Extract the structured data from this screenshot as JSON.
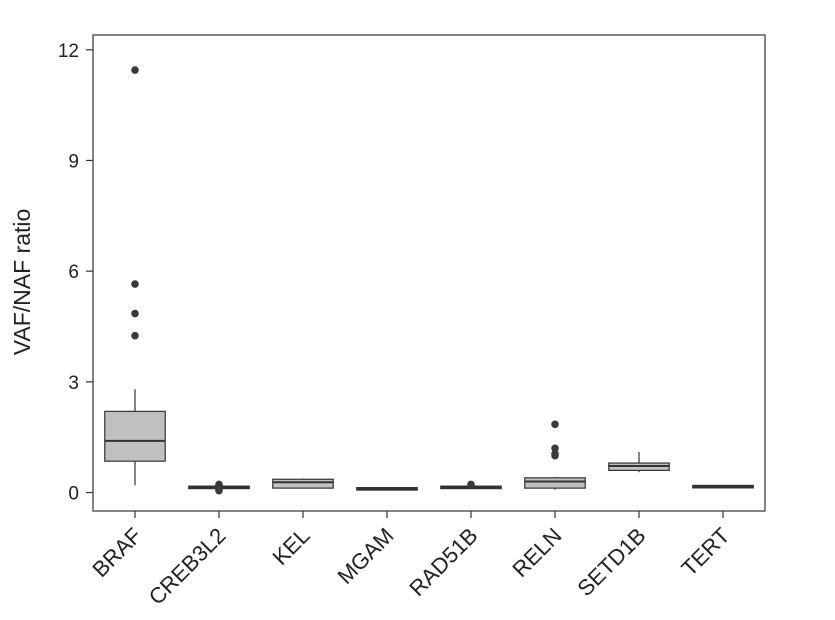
{
  "chart_data": {
    "type": "box",
    "title": "",
    "xlabel": "",
    "ylabel": "VAF/NAF ratio",
    "ylim": [
      -0.5,
      12.4
    ],
    "yticks": [
      0,
      3,
      6,
      9,
      12
    ],
    "ytick_labels": [
      "0",
      "3",
      "6",
      "9",
      "12"
    ],
    "grid": false,
    "box_color": "#c0c0c0",
    "line_color": "#333333",
    "categories": [
      "BRAF",
      "CREB3L2",
      "KEL",
      "MGAM",
      "RAD51B",
      "RELN",
      "SETD1B",
      "TERT"
    ],
    "boxes": [
      {
        "category": "BRAF",
        "whisker_low": 0.2,
        "q1": 0.85,
        "median": 1.4,
        "q3": 2.2,
        "whisker_high": 2.8,
        "outliers": [
          4.25,
          4.85,
          5.65,
          11.45
        ]
      },
      {
        "category": "CREB3L2",
        "whisker_low": 0.12,
        "q1": 0.12,
        "median": 0.14,
        "q3": 0.16,
        "whisker_high": 0.16,
        "outliers": [
          0.05,
          0.08,
          0.2,
          0.22
        ]
      },
      {
        "category": "KEL",
        "whisker_low": 0.12,
        "q1": 0.12,
        "median": 0.28,
        "q3": 0.36,
        "whisker_high": 0.38,
        "outliers": []
      },
      {
        "category": "MGAM",
        "whisker_low": 0.08,
        "q1": 0.08,
        "median": 0.1,
        "q3": 0.12,
        "whisker_high": 0.12,
        "outliers": []
      },
      {
        "category": "RAD51B",
        "whisker_low": 0.12,
        "q1": 0.12,
        "median": 0.14,
        "q3": 0.16,
        "whisker_high": 0.16,
        "outliers": [
          0.22
        ]
      },
      {
        "category": "RELN",
        "whisker_low": 0.08,
        "q1": 0.12,
        "median": 0.3,
        "q3": 0.4,
        "whisker_high": 0.42,
        "outliers": [
          1.0,
          1.05,
          1.2,
          1.85
        ]
      },
      {
        "category": "SETD1B",
        "whisker_low": 0.55,
        "q1": 0.6,
        "median": 0.72,
        "q3": 0.8,
        "whisker_high": 1.1,
        "outliers": []
      },
      {
        "category": "TERT",
        "whisker_low": 0.14,
        "q1": 0.14,
        "median": 0.16,
        "q3": 0.18,
        "whisker_high": 0.18,
        "outliers": []
      }
    ]
  }
}
